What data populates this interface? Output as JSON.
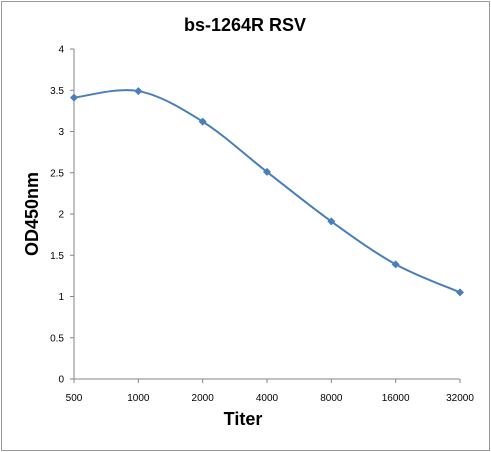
{
  "chart_data": {
    "type": "line",
    "title": "bs-1264R RSV",
    "xlabel": "Titer",
    "ylabel": "OD450nm",
    "categories": [
      "500",
      "1000",
      "2000",
      "4000",
      "8000",
      "16000",
      "32000"
    ],
    "series": [
      {
        "values": [
          3.41,
          3.49,
          3.12,
          2.51,
          1.91,
          1.39,
          1.05
        ]
      }
    ],
    "ylim": [
      0,
      4
    ],
    "yticks": [
      "0",
      "0.5",
      "1",
      "1.5",
      "2",
      "2.5",
      "3",
      "3.5",
      "4"
    ],
    "grid": false,
    "legend": "none",
    "line_color": "#4a7ebb",
    "marker_color": "#4a7ebb"
  }
}
